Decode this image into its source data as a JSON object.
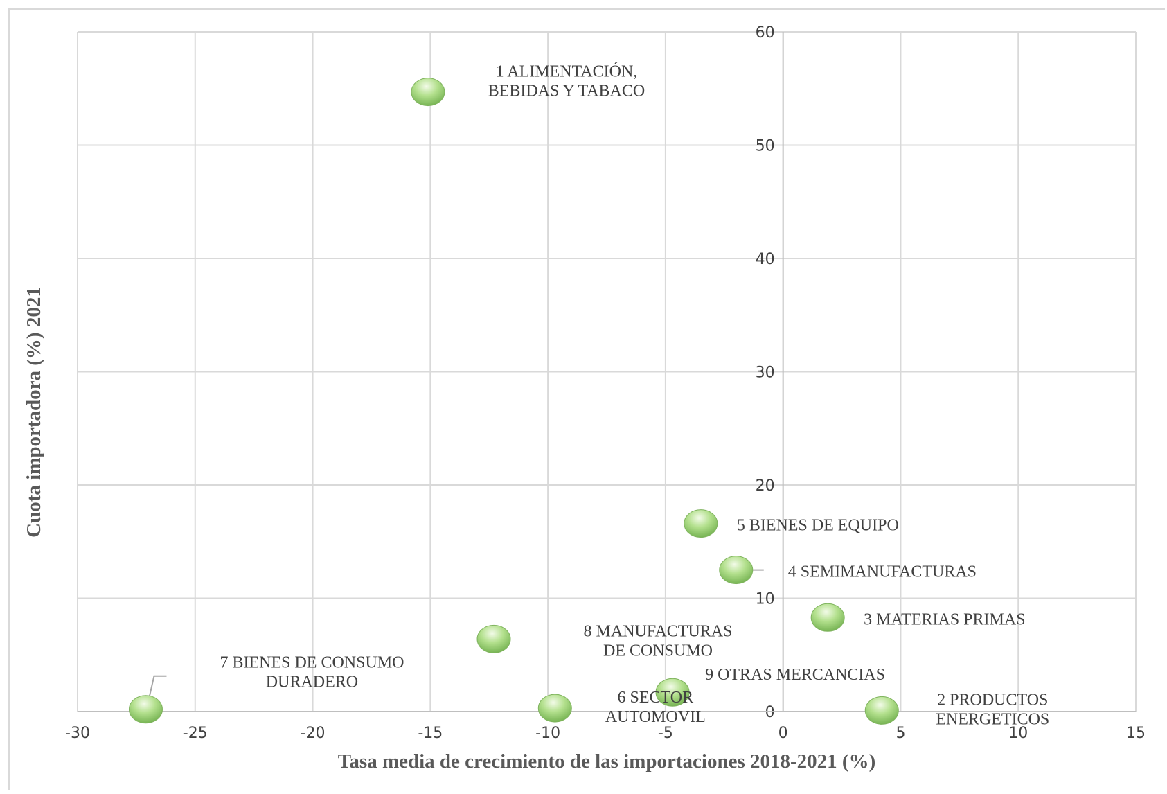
{
  "chart_data": {
    "type": "scatter",
    "title": "",
    "xlabel": "Tasa media de crecimiento de las importaciones 2018-2021 (%)",
    "ylabel": "Cuota importadora (%) 2021",
    "xlim": [
      -30,
      15
    ],
    "ylim": [
      0,
      60
    ],
    "xticks": [
      -30,
      -25,
      -20,
      -15,
      -10,
      -5,
      0,
      5,
      10,
      15
    ],
    "yticks": [
      0,
      10,
      20,
      30,
      40,
      50,
      60
    ],
    "grid": true,
    "legend": "none",
    "marker_color": "#8cc66a",
    "points": [
      {
        "name": "1 ALIMENTACIÓN, BEBIDAS Y TABACO",
        "label_lines": [
          "1 ALIMENTACIÓN,",
          "BEBIDAS Y TABACO"
        ],
        "x": -15.1,
        "y": 54.7
      },
      {
        "name": "2 PRODUCTOS ENERGETICOS",
        "label_lines": [
          "2 PRODUCTOS",
          "ENERGETICOS"
        ],
        "x": 4.2,
        "y": 0.1
      },
      {
        "name": "3 MATERIAS PRIMAS",
        "label_lines": [
          "3 MATERIAS  PRIMAS"
        ],
        "x": 1.9,
        "y": 8.3
      },
      {
        "name": "4 SEMIMANUFACTURAS",
        "label_lines": [
          "4 SEMIMANUFACTURAS"
        ],
        "x": -2.0,
        "y": 12.5
      },
      {
        "name": "5 BIENES DE EQUIPO",
        "label_lines": [
          "5 BIENES  DE EQUIPO"
        ],
        "x": -3.5,
        "y": 16.6
      },
      {
        "name": "6 SECTOR AUTOMOVIL",
        "label_lines": [
          "6 SECTOR",
          "AUTOMOVIL"
        ],
        "x": -9.7,
        "y": 0.3
      },
      {
        "name": "7 BIENES DE CONSUMO DURADERO",
        "label_lines": [
          "7 BIENES  DE CONSUMO",
          "DURADERO"
        ],
        "x": -27.1,
        "y": 0.2
      },
      {
        "name": "8 MANUFACTURAS DE CONSUMO",
        "label_lines": [
          "8 MANUFACTURAS",
          "DE CONSUMO"
        ],
        "x": -12.3,
        "y": 6.4
      },
      {
        "name": "9 OTRAS MERCANCIAS",
        "label_lines": [
          "9 OTRAS  MERCANCIAS"
        ],
        "x": -4.7,
        "y": 1.7
      }
    ]
  }
}
